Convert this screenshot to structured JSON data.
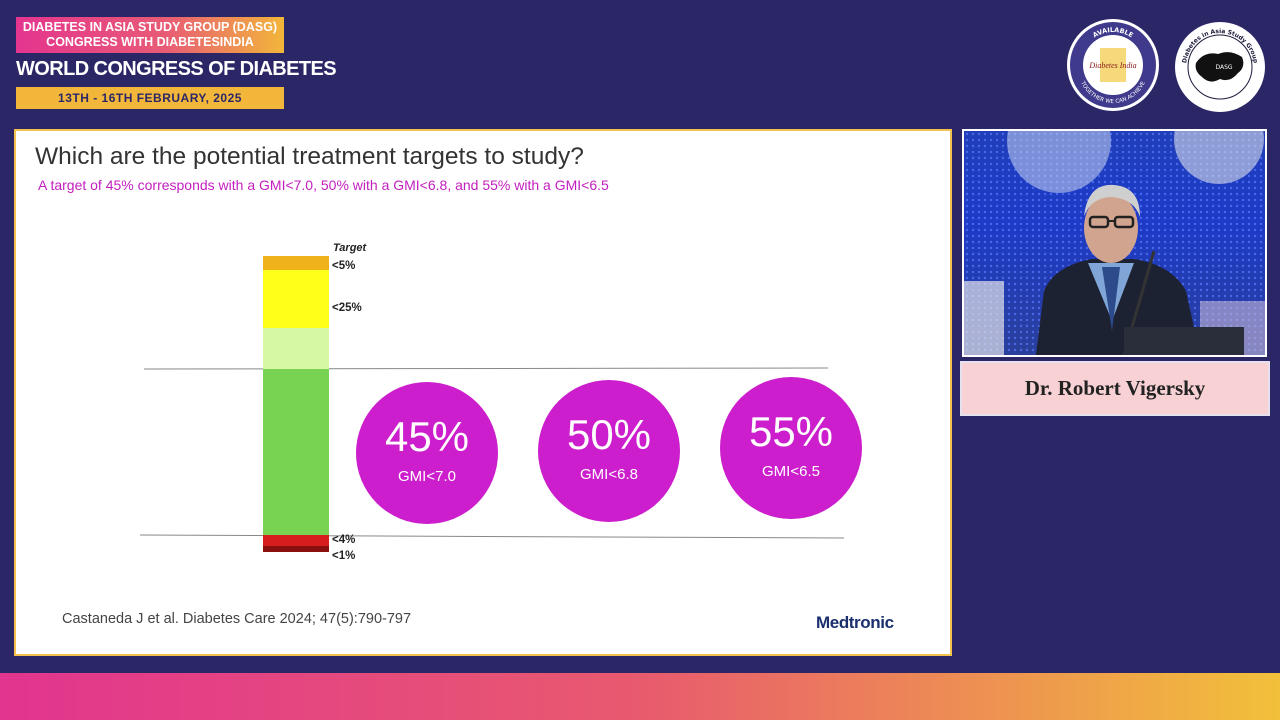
{
  "header": {
    "line1": "DIABETES IN ASIA STUDY GROUP (DASG)",
    "line2": "CONGRESS WITH DIABETESINDIA",
    "title": "WORLD CONGRESS OF DIABETES",
    "date": "13TH - 16TH FEBRUARY, 2025"
  },
  "logos": {
    "diabetes_india": {
      "ring_top": "AVAILABLE",
      "ring_left": "ACCESSIBLE AND AFFORDABLE",
      "ring_bottom": "TOGETHER WE CAN ACHIEVE",
      "center": "Diabetes India"
    },
    "dasg": {
      "ring": "Diabetes in Asia Study Group",
      "center": "DASG"
    }
  },
  "slide": {
    "title": "Which are the potential treatment targets to study?",
    "subtitle": "A target of 45% corresponds with a GMI<7.0, 50% with a GMI<6.8, and 55% with a GMI<6.5",
    "citation": "Castaneda J et al. Diabetes Care 2024; 47(5):790-797",
    "brand": "Medtronic"
  },
  "chart_data": {
    "type": "bar",
    "title": "Target",
    "segments": [
      {
        "label": "<5%",
        "color": "#f0b21a"
      },
      {
        "label": "<25%",
        "color": "#ffff1a"
      },
      {
        "label": "",
        "color": "#d6f7a4"
      },
      {
        "label": "",
        "color": "#79d352"
      },
      {
        "label": "<4%",
        "color": "#d71d1d"
      },
      {
        "label": "<1%",
        "color": "#8a0f0f"
      }
    ],
    "targets": [
      {
        "value": "45%",
        "gmi": "GMI<7.0"
      },
      {
        "value": "50%",
        "gmi": "GMI<6.8"
      },
      {
        "value": "55%",
        "gmi": "GMI<6.5"
      }
    ]
  },
  "speaker": {
    "name": "Dr. Robert Vigersky"
  },
  "colors": {
    "background": "#2b2766",
    "accent_magenta": "#cc1ecc",
    "accent_gold": "#f2b63a"
  }
}
